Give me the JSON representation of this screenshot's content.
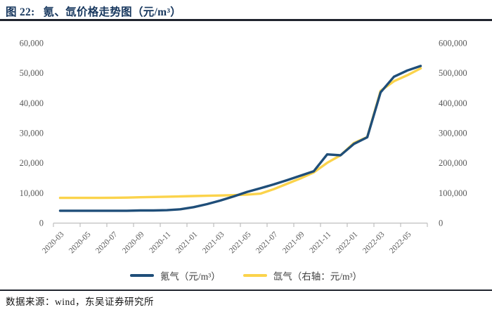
{
  "header": {
    "figure_label": "图 22:",
    "title": "氪、氙价格走势图（元/m³）"
  },
  "legend": [
    {
      "key": "krypton",
      "label": "氪气（元/m³）",
      "color": "#1F4E79"
    },
    {
      "key": "xenon",
      "label": "氙气（右轴：元/m³）",
      "color": "#FBD34B"
    }
  ],
  "footer": {
    "source": "数据来源：wind，东吴证券研究所"
  },
  "colors": {
    "title_navy": "#17375E",
    "axis_label_gray": "#595959",
    "axis_line_gray": "#BFBFBF",
    "rule_dark": "#20242e"
  },
  "chart_data": {
    "type": "line",
    "title": "氪、氙价格走势图（元/m³）",
    "xlabel": "",
    "ylabel_left": "元/m³",
    "ylabel_right": "元/m³（右轴）",
    "grid": false,
    "legend_position": "bottom",
    "x": [
      "2020-03",
      "2020-04",
      "2020-05",
      "2020-06",
      "2020-07",
      "2020-08",
      "2020-09",
      "2020-10",
      "2020-11",
      "2020-12",
      "2021-01",
      "2021-02",
      "2021-03",
      "2021-04",
      "2021-05",
      "2021-06",
      "2021-07",
      "2021-08",
      "2021-09",
      "2021-10",
      "2021-11",
      "2021-12",
      "2022-01",
      "2022-02",
      "2022-03",
      "2022-04",
      "2022-05",
      "2022-06"
    ],
    "x_tick_labels": [
      "2020-03",
      "2020-05",
      "2020-07",
      "2020-09",
      "2020-11",
      "2021-01",
      "2021-03",
      "2021-05",
      "2021-07",
      "2021-09",
      "2021-11",
      "2022-01",
      "2022-03",
      "2022-05"
    ],
    "left_axis": {
      "min": 0,
      "max": 60000,
      "ticks": [
        "0",
        "10,000",
        "20,000",
        "30,000",
        "40,000",
        "50,000",
        "60,000"
      ]
    },
    "right_axis": {
      "min": 0,
      "max": 600000,
      "ticks": [
        "0",
        "100,000",
        "200,000",
        "300,000",
        "400,000",
        "500,000",
        "600,000"
      ]
    },
    "series": [
      {
        "key": "krypton",
        "name": "氪气（元/m³）",
        "axis": "left",
        "color": "#1F4E79",
        "values": [
          4000,
          4000,
          4000,
          4000,
          4000,
          4000,
          4100,
          4100,
          4200,
          4500,
          5200,
          6200,
          7400,
          8800,
          10300,
          11500,
          12800,
          14200,
          15700,
          17200,
          22800,
          22500,
          26300,
          28500,
          43500,
          48700,
          50800,
          52300
        ]
      },
      {
        "key": "xenon",
        "name": "氙气（右轴：元/m³）",
        "axis": "right",
        "color": "#FBD34B",
        "values": [
          83000,
          83000,
          83000,
          83000,
          83500,
          84000,
          85000,
          86000,
          87000,
          88000,
          89000,
          90000,
          91000,
          92000,
          94000,
          97000,
          112000,
          130000,
          148000,
          168000,
          200000,
          225000,
          266000,
          286000,
          440000,
          472000,
          492000,
          515000
        ]
      }
    ]
  }
}
